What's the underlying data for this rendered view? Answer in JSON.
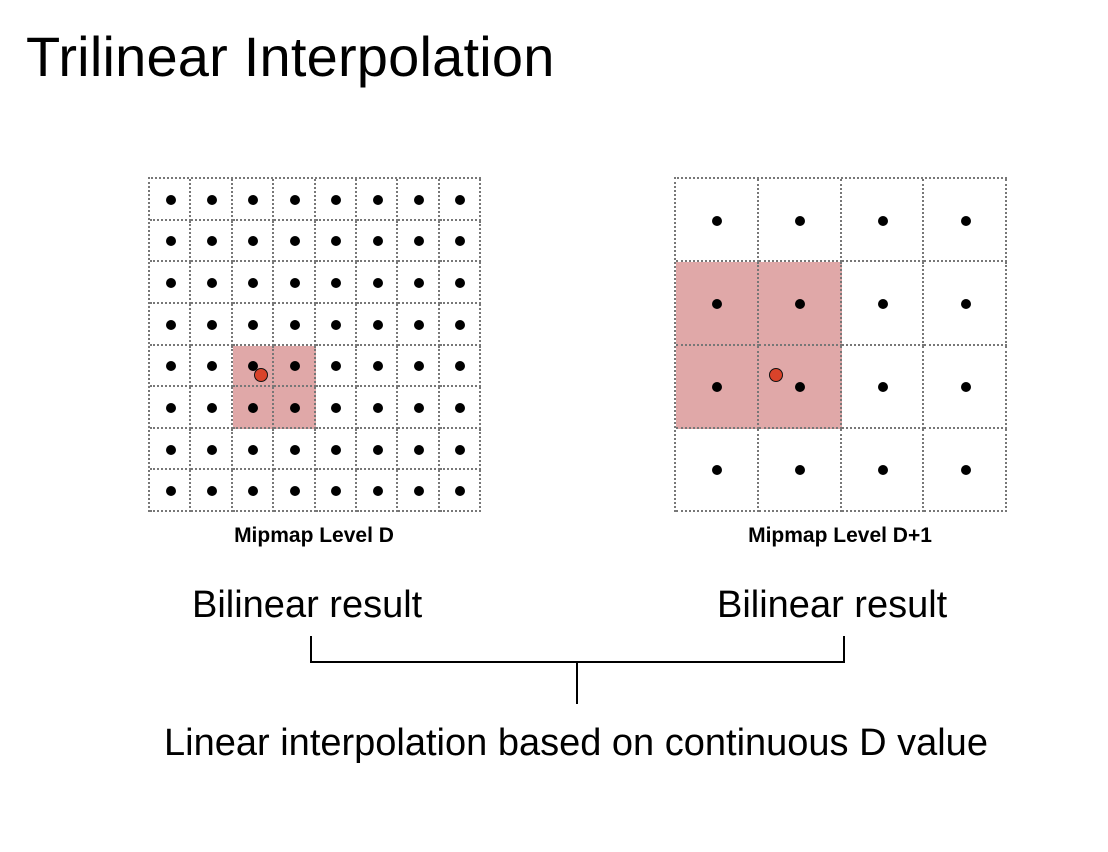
{
  "title": "Trilinear Interpolation",
  "levels": [
    {
      "caption": "Mipmap Level D",
      "result": "Bilinear result",
      "grid_size": 8,
      "highlight": {
        "col": 2,
        "row": 4,
        "width": 2,
        "height": 2
      }
    },
    {
      "caption": "Mipmap Level D+1",
      "result": "Bilinear result",
      "grid_size": 4,
      "highlight": {
        "col": 0,
        "row": 1,
        "width": 2,
        "height": 2
      }
    }
  ],
  "combine_label": "Linear interpolation based on continuous D value",
  "colors": {
    "highlight": "#e0a8a8",
    "sample_point": "#d9432a",
    "texel_dot": "#000000"
  }
}
